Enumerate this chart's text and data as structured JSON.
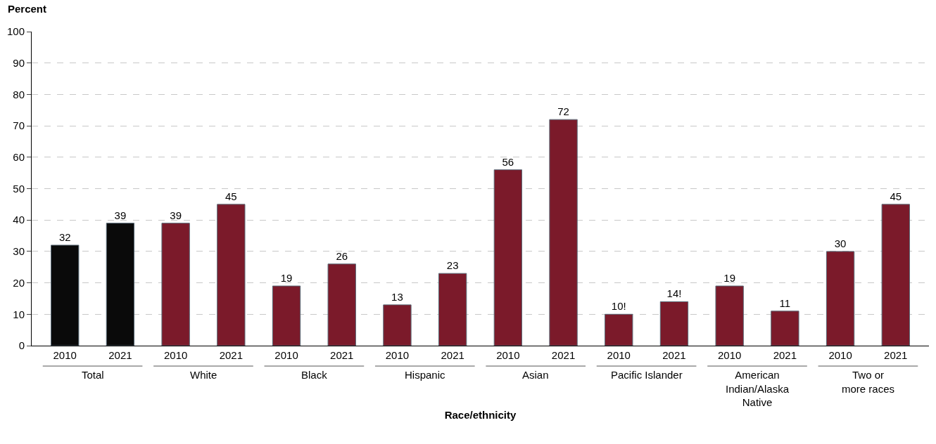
{
  "chart_data": {
    "type": "bar",
    "xlabel": "Race/ethnicity",
    "ylabel": "Percent",
    "categories": [
      "2010",
      "2021",
      "2010",
      "2021",
      "2010",
      "2021",
      "2010",
      "2021",
      "2010",
      "2021",
      "2010",
      "2021",
      "2010",
      "2021",
      "2010",
      "2021"
    ],
    "values": [
      32,
      39,
      39,
      45,
      19,
      26,
      13,
      23,
      56,
      72,
      10,
      14,
      19,
      11,
      30,
      45
    ],
    "value_labels": [
      "32",
      "39",
      "39",
      "45",
      "19",
      "26",
      "13",
      "23",
      "56",
      "72",
      "10!",
      "14!",
      "19",
      "11",
      "30",
      "45"
    ],
    "colors": [
      "#0a0a0a",
      "#0a0a0a",
      "#7b1a2a",
      "#7b1a2a",
      "#7b1a2a",
      "#7b1a2a",
      "#7b1a2a",
      "#7b1a2a",
      "#7b1a2a",
      "#7b1a2a",
      "#7b1a2a",
      "#7b1a2a",
      "#7b1a2a",
      "#7b1a2a",
      "#7b1a2a",
      "#7b1a2a"
    ],
    "annotations": [
      "Total",
      "White",
      "Black",
      "Hispanic",
      "Asian",
      "Pacific Islander",
      "American\nIndian/Alaska\nNative",
      "Two or\nmore races"
    ],
    "ylim": [
      0,
      100
    ],
    "yticks": [
      0,
      10,
      20,
      30,
      40,
      50,
      60,
      70,
      80,
      90,
      100
    ],
    "grid": "y",
    "legend": false
  }
}
